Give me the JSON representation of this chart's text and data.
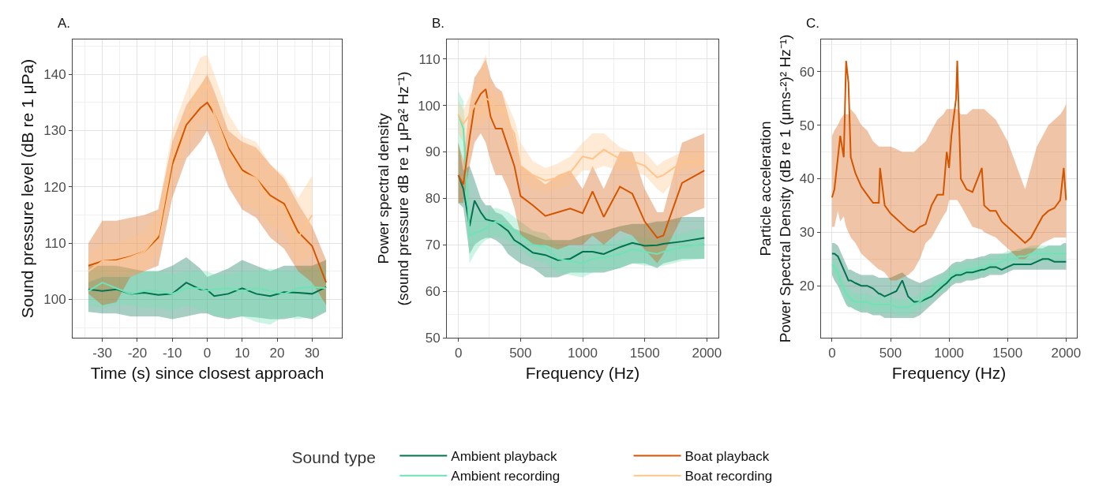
{
  "chart_data": [
    {
      "type": "line",
      "title": "A.",
      "xlabel": "Time (s) since closest approach",
      "ylabel": "Sound pressure level (dB re 1 μPa)",
      "legend": "bottom",
      "legend_title": "Sound type",
      "grid": true,
      "xlim": [
        -38.5,
        38.5
      ],
      "ylim": [
        93.2,
        146.2
      ],
      "xticks": [
        -30,
        -20,
        -10,
        0,
        10,
        20,
        30
      ],
      "yticks": [
        100,
        110,
        120,
        130,
        140
      ],
      "x": [
        -34,
        -30,
        -26,
        -22,
        -18,
        -14,
        -10,
        -6,
        -2,
        0,
        2,
        6,
        10,
        14,
        18,
        22,
        26,
        30,
        34
      ],
      "series": [
        {
          "name": "Ambient playback",
          "color": "#01734f",
          "values": [
            101.8,
            101.5,
            101.8,
            101,
            101.2,
            100.8,
            101,
            103,
            101.8,
            101.7,
            100.6,
            101,
            102,
            101,
            100.6,
            101.3,
            101.2,
            101,
            102.2
          ],
          "lower": [
            97.8,
            97.5,
            97.5,
            97,
            97,
            97,
            96.5,
            97,
            97.5,
            97.5,
            97,
            96.5,
            97,
            96.8,
            96.5,
            96.5,
            97,
            96.5,
            97.8
          ],
          "upper": [
            106,
            106,
            106,
            105.5,
            105,
            105,
            106,
            107.5,
            105.5,
            104,
            104.5,
            105.5,
            107,
            106,
            105,
            106,
            106,
            106,
            107
          ]
        },
        {
          "name": "Ambient recording",
          "color": "#6fe3b5",
          "values": [
            101.5,
            103,
            102,
            101,
            101.5,
            101.5,
            101,
            102,
            102,
            101.5,
            101.8,
            102,
            101.5,
            102,
            101.5,
            101,
            102,
            102.2,
            102
          ],
          "lower": [
            99,
            98.5,
            99,
            99,
            98.5,
            98.5,
            98,
            99,
            98,
            98,
            97,
            97,
            97,
            96,
            95.5,
            97,
            96.5,
            97,
            98
          ],
          "upper": [
            105,
            105,
            104,
            105,
            105,
            105,
            104.5,
            105,
            105,
            105,
            104.5,
            104.5,
            105,
            105,
            105.5,
            105,
            105,
            105.5,
            106
          ]
        },
        {
          "name": "Boat playback",
          "color": "#d45500",
          "values": [
            106,
            106.8,
            107,
            107.6,
            108.5,
            111,
            124,
            131,
            134,
            135,
            133,
            127,
            123,
            121.5,
            118.5,
            117,
            112,
            109.5,
            103
          ],
          "lower": [
            101,
            99,
            99.5,
            104,
            105,
            106,
            118,
            125,
            128,
            130,
            127,
            120,
            116,
            114.5,
            111,
            109,
            105,
            103,
            99
          ],
          "upper": [
            110,
            114,
            114,
            114.5,
            115,
            116,
            128,
            134.5,
            138,
            140,
            137,
            130,
            128,
            127,
            124,
            121.5,
            117,
            113,
            107
          ]
        },
        {
          "name": "Boat recording",
          "color": "#ffc48a",
          "x": [
            -34,
            -30,
            -26,
            -22,
            -18,
            -14,
            -10,
            -6,
            -2,
            0,
            2,
            6,
            10,
            14,
            18,
            22,
            26,
            30
          ],
          "values": [
            105,
            106.8,
            106.8,
            107.5,
            108.5,
            111.5,
            125,
            132,
            137.5,
            138,
            133,
            126.5,
            122.5,
            121.5,
            117.5,
            116.5,
            111,
            115
          ],
          "lower": [
            103,
            104,
            104,
            104,
            105,
            108,
            120,
            127,
            131,
            132,
            128,
            121,
            117,
            116,
            113,
            112,
            106,
            108
          ],
          "upper": [
            108,
            110,
            110,
            111,
            112,
            116,
            130,
            137,
            143,
            143.5,
            140,
            133,
            129,
            128,
            124,
            122,
            118,
            122
          ]
        }
      ]
    },
    {
      "type": "line",
      "title": "B.",
      "xlabel": "Frequency (Hz)",
      "ylabel": "Power spectral density\n(sound pressure dB re 1 μPa² Hz⁻¹)",
      "grid": true,
      "xlim": [
        -93,
        2093
      ],
      "ylim": [
        50,
        114.2
      ],
      "xticks": [
        0,
        500,
        1000,
        1500,
        2000
      ],
      "yticks": [
        50,
        60,
        70,
        80,
        90,
        100,
        110
      ],
      "x": [
        0,
        40,
        90,
        130,
        180,
        220,
        260,
        300,
        350,
        400,
        450,
        500,
        600,
        700,
        800,
        900,
        1000,
        1080,
        1170,
        1300,
        1400,
        1500,
        1600,
        1650,
        1800,
        1980
      ],
      "series": [
        {
          "color": "#01734f",
          "values": [
            85,
            82,
            74,
            79.5,
            77,
            75.5,
            75.2,
            75,
            74,
            73,
            71,
            70.2,
            68.3,
            67.8,
            66.7,
            67,
            68.5,
            68.5,
            68,
            69.5,
            70.4,
            69.8,
            69.9,
            70.2,
            70.7,
            71.5
          ],
          "lower": [
            79,
            78,
            68,
            70,
            71,
            71.5,
            71.5,
            71,
            70,
            68,
            67,
            66,
            65,
            63,
            63,
            64,
            64,
            64,
            64,
            65,
            66,
            66,
            65,
            66,
            67,
            67
          ],
          "upper": [
            92,
            86,
            87,
            84,
            80,
            78.5,
            78.5,
            77,
            76.5,
            75,
            73.5,
            73,
            72,
            71,
            71,
            71,
            72,
            72.5,
            73,
            74,
            74.5,
            74.5,
            75,
            75,
            76,
            76
          ]
        },
        {
          "color": "#6fe3b5",
          "values": [
            98,
            95,
            72,
            72.5,
            73,
            73.5,
            74.5,
            75,
            74.5,
            74,
            73,
            72,
            70,
            69.5,
            67,
            66.5,
            66,
            67,
            67.3,
            68,
            69,
            68.5,
            68,
            68.5,
            69.5,
            70.2
          ],
          "lower": [
            90,
            88,
            66,
            68,
            70,
            71,
            71.5,
            72,
            71.5,
            71,
            70,
            69,
            67,
            66,
            64,
            63.5,
            63,
            64,
            64.5,
            65,
            66,
            65.5,
            65.5,
            65.5,
            66.5,
            67
          ],
          "upper": [
            103,
            101,
            78,
            77,
            77,
            77,
            77.5,
            78,
            77.5,
            77,
            76,
            75,
            73,
            72.5,
            70,
            69.5,
            69,
            70,
            70.5,
            71,
            72,
            71.5,
            71,
            71.5,
            72.5,
            73.5
          ]
        },
        {
          "color": "#d45500",
          "values": [
            85,
            83,
            93,
            100,
            102.5,
            103.5,
            97.5,
            95,
            95,
            91,
            87,
            80.5,
            78.5,
            76.2,
            77,
            77.8,
            76.8,
            81.5,
            76,
            82.5,
            81,
            75,
            71.5,
            72,
            83.3,
            86
          ],
          "lower": [
            79,
            79,
            87,
            92,
            94,
            92,
            88,
            85,
            85,
            82,
            78,
            72,
            70,
            70,
            69,
            70,
            70,
            72,
            70,
            73,
            72,
            69,
            66,
            68,
            76,
            78
          ],
          "upper": [
            92,
            88,
            100,
            106,
            108,
            110,
            106,
            104,
            103,
            98,
            93,
            87,
            85,
            83,
            85,
            86,
            82,
            87,
            82,
            90,
            90,
            82,
            77,
            77,
            92,
            94
          ]
        },
        {
          "color": "#ffc48a",
          "values": [
            98,
            96,
            98,
            100,
            98,
            101.5,
            101,
            99,
            99.5,
            96,
            94,
            87,
            85,
            83.8,
            84.5,
            85.5,
            89,
            88.5,
            90.5,
            88.5,
            88,
            87,
            84.5,
            85,
            87.8,
            88
          ],
          "lower": [
            94,
            92,
            94,
            96,
            95,
            97,
            97,
            96,
            96,
            92,
            90,
            84,
            82,
            81.5,
            82,
            83,
            86,
            86,
            87,
            86,
            86,
            85,
            82,
            81,
            86,
            86.5
          ],
          "upper": [
            101,
            99,
            102,
            104,
            108,
            111,
            105,
            102,
            103,
            100,
            97,
            92,
            88,
            86.5,
            87.5,
            89,
            92,
            94,
            94,
            91,
            90,
            90,
            87,
            88,
            90,
            90.5
          ]
        }
      ]
    },
    {
      "type": "line",
      "title": "C.",
      "xlabel": "Frequency (Hz)",
      "ylabel": "Particle acceleration\nPower Spectral Density (dB re 1 (μms-²)² Hz⁻¹)",
      "grid": true,
      "xlim": [
        -94,
        2092
      ],
      "ylim": [
        10.3,
        66
      ],
      "xticks": [
        0,
        500,
        1000,
        1500,
        2000
      ],
      "yticks": [
        20,
        30,
        40,
        50,
        60
      ],
      "x": [
        0,
        20,
        50,
        70,
        100,
        120,
        140,
        160,
        200,
        250,
        300,
        350,
        400,
        410,
        450,
        500,
        550,
        600,
        650,
        700,
        750,
        800,
        850,
        900,
        950,
        980,
        1000,
        1020,
        1060,
        1070,
        1100,
        1150,
        1200,
        1280,
        1300,
        1350,
        1400,
        1450,
        1500,
        1550,
        1600,
        1650,
        1700,
        1750,
        1800,
        1850,
        1900,
        1950,
        1980,
        2000
      ],
      "series": [
        {
          "color": "#01734f",
          "values": [
            26,
            26,
            25.5,
            24.5,
            23,
            22,
            21,
            21,
            20.5,
            20,
            20,
            19.5,
            18.5,
            18.5,
            18,
            18.5,
            19,
            21,
            18,
            17,
            17,
            17.5,
            18,
            19,
            20,
            20.5,
            21,
            21.5,
            22,
            22,
            22,
            22.5,
            22.5,
            23,
            23,
            23.5,
            23.5,
            23,
            23.5,
            24,
            24,
            24,
            24,
            24.5,
            25,
            25,
            24.5,
            24.5,
            24.5,
            24.5
          ],
          "lower": [
            22,
            21,
            20,
            19,
            17.5,
            16.5,
            16,
            16,
            15.5,
            15,
            15,
            14.5,
            14.5,
            14.5,
            14,
            14,
            14,
            14,
            14,
            14,
            14.5,
            15.5,
            16.5,
            17.5,
            18.5,
            19,
            19.5,
            20,
            20.5,
            20.5,
            20.5,
            21,
            21,
            21.5,
            21.5,
            22,
            22,
            22,
            22.5,
            23,
            23,
            23,
            23,
            23,
            23,
            23,
            23,
            23,
            23,
            23
          ],
          "upper": [
            28,
            28,
            27.5,
            26.5,
            25,
            24,
            23,
            23,
            22.5,
            22,
            22,
            22,
            21.5,
            21.5,
            21.5,
            21.5,
            22,
            22.5,
            21.5,
            21,
            20.5,
            21,
            21.5,
            22,
            22.5,
            23,
            23.5,
            24,
            24.5,
            24.5,
            24.5,
            25,
            25,
            25.5,
            25.5,
            26,
            26,
            26,
            26,
            26.5,
            26.5,
            27,
            27,
            27,
            27,
            27.5,
            27.5,
            27.5,
            28,
            28
          ]
        },
        {
          "color": "#6fe3b5",
          "values": [
            24,
            23.5,
            22.5,
            21,
            19.5,
            18.5,
            18,
            17.5,
            17,
            17,
            17,
            16.5,
            16.5,
            16.5,
            16.5,
            16.5,
            16,
            16,
            16,
            16.5,
            17,
            18,
            19,
            20,
            20.5,
            21,
            21.5,
            22,
            22.5,
            22.5,
            22.5,
            23,
            23,
            23.5,
            23.5,
            24,
            24,
            24.5,
            25,
            25,
            25.5,
            25.5,
            26,
            26,
            26,
            26,
            26,
            26,
            26,
            26
          ],
          "lower": [
            22.5,
            22,
            21,
            19.5,
            18,
            17,
            16.5,
            16,
            15.5,
            15.5,
            15.5,
            15,
            15,
            15,
            15,
            15,
            14.5,
            14.5,
            14.5,
            15,
            15.5,
            16.5,
            17.5,
            18.5,
            19,
            19.5,
            20,
            20.5,
            21,
            21,
            21,
            21.5,
            21.5,
            22,
            22,
            22.5,
            22.5,
            23,
            23.5,
            23.5,
            24,
            24,
            24.5,
            24.5,
            24.5,
            24.5,
            24.5,
            24.5,
            24.5,
            24.5
          ],
          "upper": [
            25.5,
            25,
            24,
            22.5,
            21,
            20,
            19.5,
            19,
            18.5,
            18.5,
            18.5,
            18,
            18,
            18,
            18,
            18,
            17.5,
            17.5,
            17.5,
            18,
            18.5,
            19.5,
            20.5,
            21.5,
            22,
            22.5,
            23,
            23.5,
            24,
            24,
            24,
            24.5,
            24.5,
            25,
            25,
            25.5,
            25.5,
            26,
            26.5,
            26.5,
            27,
            27,
            27.5,
            27.5,
            27.5,
            27.5,
            27.5,
            27.5,
            27.5,
            27.5
          ]
        },
        {
          "color": "#d45500",
          "values": [
            36.5,
            38,
            44,
            48,
            44,
            62,
            58,
            44,
            41,
            38.5,
            37,
            35.5,
            35.5,
            42,
            35,
            33.5,
            32.5,
            31.5,
            30.5,
            30,
            31,
            31.5,
            35,
            37,
            37,
            45,
            42,
            48,
            55,
            62,
            40,
            38,
            37.5,
            42,
            35,
            34,
            34,
            32,
            31,
            30,
            29,
            28,
            29,
            31,
            33,
            34,
            34.5,
            36,
            42,
            36
          ],
          "lower": [
            31,
            31,
            34,
            32,
            33,
            31,
            30,
            29,
            28,
            26,
            25,
            24,
            23,
            23,
            22.5,
            21,
            21,
            21.5,
            22,
            23,
            25,
            28,
            29,
            31,
            33,
            34,
            36,
            36,
            36,
            36,
            35,
            33,
            31,
            30.5,
            30,
            29.5,
            29,
            28,
            27,
            26,
            25,
            25,
            26,
            27,
            28,
            28.5,
            29,
            29,
            29,
            29
          ],
          "upper": [
            48,
            49,
            50,
            51,
            52,
            52,
            52,
            53,
            52,
            50,
            49,
            47,
            46,
            46,
            46,
            46,
            45.5,
            45,
            45,
            45,
            46,
            47,
            49,
            51,
            52,
            53,
            53,
            53,
            53,
            53,
            52,
            52,
            53,
            53,
            53,
            52,
            51,
            49,
            47,
            44,
            41,
            38,
            42,
            46,
            48,
            50,
            51,
            52,
            53,
            54
          ]
        }
      ]
    }
  ]
}
